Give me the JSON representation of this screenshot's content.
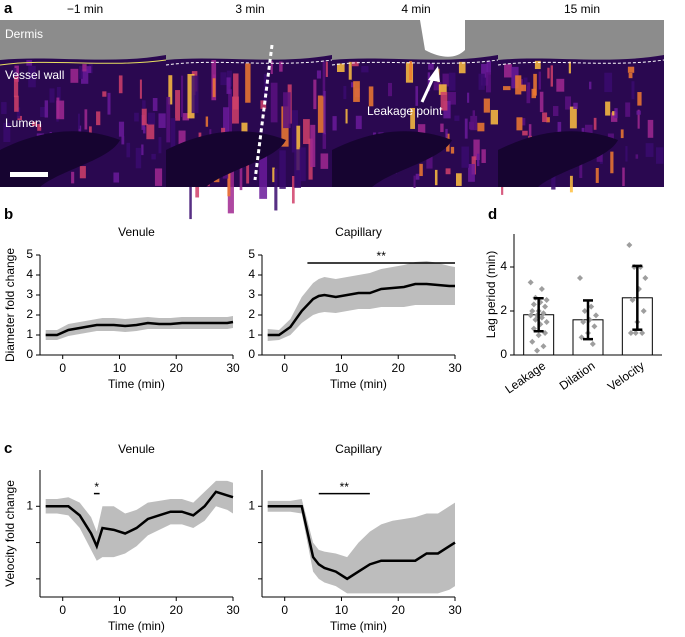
{
  "panel_a": {
    "label": "a",
    "times": [
      "−1 min",
      "3 min",
      "4 min",
      "15 min"
    ],
    "annotations": [
      "Dermis",
      "Vessel wall",
      "Lumen",
      "Leakage point"
    ]
  },
  "panel_labels": [
    "b",
    "c",
    "d"
  ],
  "chart_data": [
    {
      "type": "line",
      "title": "Venule",
      "ylabel": "Diameter fold change",
      "xlabel": "Time (min)",
      "xlim": [
        -4,
        30
      ],
      "xticks": [
        0,
        10,
        20,
        30
      ],
      "ylim": [
        0,
        5
      ],
      "yticks": [
        0,
        1,
        2,
        3,
        4,
        5
      ],
      "color": "#000000",
      "band_color": "#bdbdbd",
      "x": [
        -3,
        -1,
        1,
        3,
        5,
        6,
        7,
        9,
        11,
        13,
        15,
        17,
        19,
        21,
        23,
        25,
        27,
        29,
        30
      ],
      "values": [
        1,
        1,
        1.25,
        1.35,
        1.45,
        1.5,
        1.5,
        1.5,
        1.45,
        1.5,
        1.6,
        1.55,
        1.55,
        1.6,
        1.6,
        1.6,
        1.6,
        1.6,
        1.65
      ],
      "band_low": [
        0.75,
        0.75,
        0.95,
        1.05,
        1.15,
        1.2,
        1.2,
        1.2,
        1.15,
        1.2,
        1.3,
        1.3,
        1.3,
        1.3,
        1.3,
        1.3,
        1.3,
        1.3,
        1.35
      ],
      "band_high": [
        1.25,
        1.25,
        1.55,
        1.65,
        1.75,
        1.8,
        1.85,
        1.85,
        1.8,
        1.85,
        1.9,
        1.85,
        1.85,
        1.9,
        1.9,
        1.9,
        1.9,
        1.9,
        1.95
      ]
    },
    {
      "type": "line",
      "title": "Capillary",
      "xlabel": "Time (min)",
      "xlim": [
        -4,
        30
      ],
      "xticks": [
        0,
        10,
        20,
        30
      ],
      "ylim": [
        0,
        5
      ],
      "yticks": [
        0,
        1,
        2,
        3,
        4,
        5
      ],
      "color": "#000000",
      "band_color": "#bdbdbd",
      "x": [
        -3,
        -1,
        1,
        3,
        5,
        6,
        7,
        9,
        11,
        13,
        15,
        17,
        19,
        21,
        23,
        25,
        27,
        29,
        30
      ],
      "values": [
        1,
        1,
        1.4,
        2.2,
        2.8,
        2.95,
        3,
        2.9,
        3,
        3.1,
        3.1,
        3.3,
        3.35,
        3.4,
        3.55,
        3.55,
        3.5,
        3.45,
        3.45
      ],
      "band_low": [
        0.7,
        0.75,
        1.0,
        1.6,
        2.0,
        2.1,
        2.15,
        2.1,
        2.2,
        2.3,
        2.3,
        2.4,
        2.4,
        2.4,
        2.5,
        2.5,
        2.5,
        2.5,
        2.5
      ],
      "band_high": [
        1.3,
        1.25,
        1.8,
        2.9,
        3.6,
        3.8,
        3.9,
        3.8,
        3.9,
        4.0,
        4.1,
        4.3,
        4.4,
        4.5,
        4.65,
        4.7,
        4.6,
        4.45,
        4.4
      ],
      "annotations": [
        {
          "text": "**",
          "x": [
            4,
            30
          ],
          "y": 4.6
        }
      ]
    },
    {
      "type": "line",
      "title": "Venule",
      "ylabel": "Velocity fold change",
      "xlabel": "Time (min)",
      "xlim": [
        -4,
        30
      ],
      "xticks": [
        0,
        10,
        20,
        30
      ],
      "ylim": [
        0.5,
        1.2
      ],
      "yticks": [
        1
      ],
      "yminor": [
        0.6,
        0.8
      ],
      "color": "#000000",
      "band_color": "#bdbdbd",
      "x": [
        -3,
        -1,
        1,
        3,
        5,
        6,
        7,
        9,
        11,
        13,
        15,
        17,
        19,
        21,
        23,
        25,
        27,
        29,
        30
      ],
      "values": [
        1.0,
        1.0,
        1.0,
        0.95,
        0.85,
        0.78,
        0.88,
        0.87,
        0.85,
        0.88,
        0.93,
        0.95,
        0.97,
        0.97,
        0.95,
        1.0,
        1.08,
        1.06,
        1.05
      ],
      "band_low": [
        0.96,
        0.96,
        0.95,
        0.88,
        0.76,
        0.7,
        0.72,
        0.72,
        0.74,
        0.78,
        0.84,
        0.87,
        0.9,
        0.9,
        0.88,
        0.92,
        1.0,
        0.98,
        0.96
      ],
      "band_high": [
        1.04,
        1.04,
        1.05,
        1.02,
        0.94,
        0.86,
        1.0,
        1.0,
        0.96,
        0.98,
        1.02,
        1.03,
        1.04,
        1.04,
        1.02,
        1.08,
        1.14,
        1.14,
        1.13
      ],
      "annotations": [
        {
          "text": "*",
          "x": [
            5.5,
            6.5
          ],
          "y": 1.07
        }
      ]
    },
    {
      "type": "line",
      "title": "Capillary",
      "xlabel": "Time (min)",
      "xlim": [
        -4,
        30
      ],
      "xticks": [
        0,
        10,
        20,
        30
      ],
      "ylim": [
        0.5,
        1.2
      ],
      "yticks": [
        1
      ],
      "yminor": [
        0.6,
        0.8
      ],
      "color": "#000000",
      "band_color": "#bdbdbd",
      "x": [
        -3,
        -1,
        1,
        3,
        5,
        6,
        7,
        9,
        11,
        13,
        15,
        17,
        19,
        21,
        23,
        25,
        27,
        29,
        30
      ],
      "values": [
        1.0,
        1.0,
        1.0,
        1.0,
        0.72,
        0.68,
        0.66,
        0.64,
        0.6,
        0.64,
        0.68,
        0.7,
        0.7,
        0.7,
        0.7,
        0.74,
        0.74,
        0.78,
        0.8
      ],
      "band_low": [
        0.97,
        0.97,
        0.97,
        0.96,
        0.64,
        0.6,
        0.58,
        0.56,
        0.52,
        0.52,
        0.52,
        0.52,
        0.52,
        0.52,
        0.52,
        0.52,
        0.52,
        0.54,
        0.56
      ],
      "band_high": [
        1.03,
        1.03,
        1.03,
        1.04,
        0.8,
        0.76,
        0.75,
        0.74,
        0.72,
        0.8,
        0.86,
        0.9,
        0.92,
        0.93,
        0.94,
        0.96,
        0.96,
        1.0,
        1.02
      ],
      "annotations": [
        {
          "text": "**",
          "x": [
            6,
            15
          ],
          "y": 1.07
        }
      ]
    },
    {
      "type": "bar",
      "ylabel": "Lag period (min)",
      "ylim": [
        0,
        5.5
      ],
      "yticks": [
        0,
        2,
        4
      ],
      "categories": [
        "Leakage",
        "Dilation",
        "Velocity"
      ],
      "values": [
        1.83,
        1.6,
        2.6
      ],
      "errors": [
        0.75,
        0.88,
        1.45
      ],
      "color": "#ffffff",
      "point_color": "#9e9e9e",
      "points": [
        [
          3.3,
          3.0,
          2.6,
          2.5,
          2.4,
          2.3,
          2.2,
          2.0,
          2.0,
          1.9,
          1.8,
          1.8,
          1.7,
          1.6,
          1.5,
          1.4,
          1.2,
          1.0,
          0.9,
          0.6,
          0.4,
          0.2
        ],
        [
          3.5,
          2.2,
          2.0,
          1.8,
          1.6,
          1.5,
          1.3,
          1.0,
          0.8,
          0.5
        ],
        [
          5.0,
          4.0,
          4.0,
          3.5,
          3.0,
          2.5,
          2.0,
          1.5,
          1.0,
          1.0,
          1.0
        ]
      ]
    }
  ]
}
